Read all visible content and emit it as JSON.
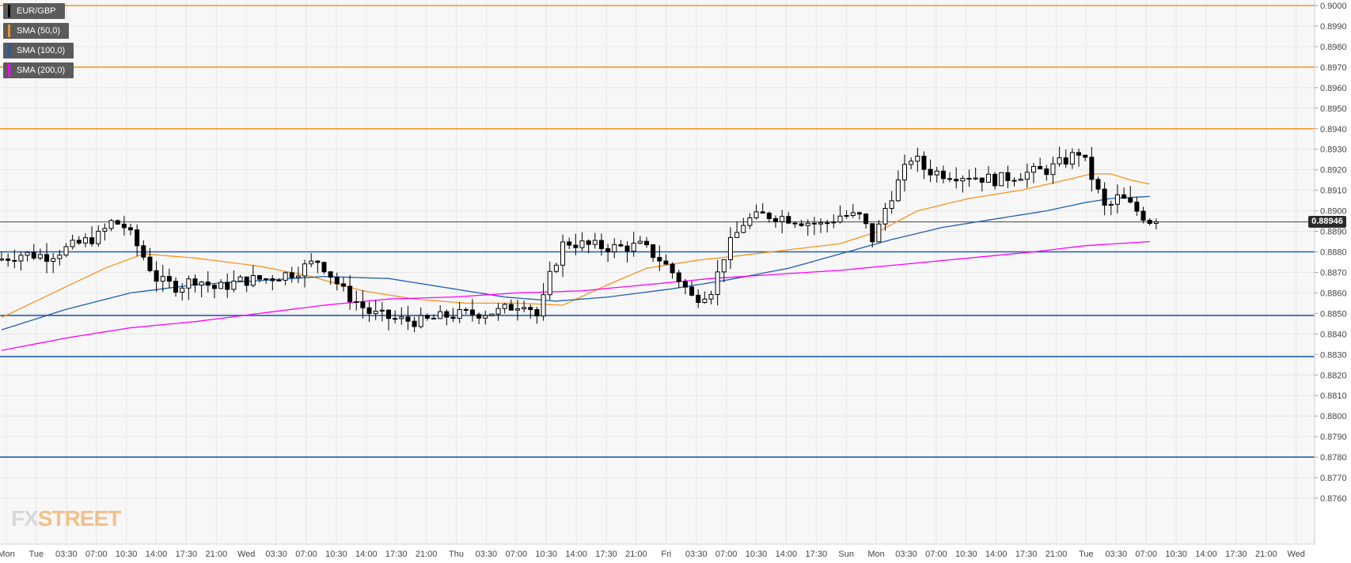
{
  "chart_data": {
    "type": "candlestick",
    "symbol": "EUR/GBP",
    "legend": [
      {
        "label": "EUR/GBP",
        "color": "#000000"
      },
      {
        "label": "SMA (50,0)",
        "color": "#f7931e"
      },
      {
        "label": "SMA (100,0)",
        "color": "#1f5fae"
      },
      {
        "label": "SMA (200,0)",
        "color": "#ff00ff"
      }
    ],
    "y_axis": {
      "min": 0.876,
      "max": 0.9,
      "step": 0.001,
      "ticks": [
        "0.9000",
        "0.8990",
        "0.8980",
        "0.8970",
        "0.8960",
        "0.8950",
        "0.8940",
        "0.8930",
        "0.8920",
        "0.8910",
        "0.8900",
        "0.8890",
        "0.8880",
        "0.8870",
        "0.8860",
        "0.8850",
        "0.8840",
        "0.8830",
        "0.8820",
        "0.8810",
        "0.8800",
        "0.8790",
        "0.8780",
        "0.8770",
        "0.8760"
      ]
    },
    "x_axis": {
      "labels": [
        "Mon",
        "Tue",
        "03:30",
        "07:00",
        "10:30",
        "14:00",
        "17:30",
        "21:00",
        "Wed",
        "03:30",
        "07:00",
        "10:30",
        "14:00",
        "17:30",
        "21:00",
        "Thu",
        "03:30",
        "07:00",
        "10:30",
        "14:00",
        "17:30",
        "21:00",
        "Fri",
        "03:30",
        "07:00",
        "10:30",
        "14:00",
        "17:30",
        "Sun",
        "Mon",
        "03:30",
        "07:00",
        "10:30",
        "14:00",
        "17:30",
        "21:00",
        "Tue",
        "03:30",
        "07:00",
        "10:30",
        "14:00",
        "17:30",
        "21:00",
        "Wed"
      ]
    },
    "last_price": "0.88946",
    "last_price_value": 0.88946,
    "horizontal_levels": [
      {
        "value": 0.9,
        "color": "#f7931e"
      },
      {
        "value": 0.897,
        "color": "#f7931e"
      },
      {
        "value": 0.894,
        "color": "#f7931e"
      },
      {
        "value": 0.888,
        "color": "#1f5fae"
      },
      {
        "value": 0.8849,
        "color": "#1f5fae"
      },
      {
        "value": 0.8829,
        "color": "#1f5fae"
      },
      {
        "value": 0.878,
        "color": "#1f5fae"
      }
    ],
    "price_path": [
      [
        0,
        0.8876
      ],
      [
        4,
        0.8879
      ],
      [
        8,
        0.8878
      ],
      [
        12,
        0.8883
      ],
      [
        16,
        0.8888
      ],
      [
        18,
        0.8895
      ],
      [
        20,
        0.8892
      ],
      [
        22,
        0.8882
      ],
      [
        25,
        0.8866
      ],
      [
        28,
        0.8863
      ],
      [
        31,
        0.8867
      ],
      [
        34,
        0.8862
      ],
      [
        38,
        0.8866
      ],
      [
        42,
        0.8867
      ],
      [
        46,
        0.887
      ],
      [
        50,
        0.8876
      ],
      [
        54,
        0.886
      ],
      [
        58,
        0.885
      ],
      [
        62,
        0.8847
      ],
      [
        66,
        0.8846
      ],
      [
        70,
        0.8849
      ],
      [
        74,
        0.885
      ],
      [
        78,
        0.8851
      ],
      [
        82,
        0.8856
      ],
      [
        84,
        0.8848
      ],
      [
        86,
        0.887
      ],
      [
        88,
        0.8885
      ],
      [
        92,
        0.8883
      ],
      [
        96,
        0.8882
      ],
      [
        100,
        0.8883
      ],
      [
        103,
        0.8876
      ],
      [
        106,
        0.8866
      ],
      [
        108,
        0.8857
      ],
      [
        111,
        0.8862
      ],
      [
        113,
        0.888
      ],
      [
        116,
        0.8895
      ],
      [
        119,
        0.8898
      ],
      [
        122,
        0.8897
      ],
      [
        125,
        0.8895
      ],
      [
        128,
        0.8893
      ],
      [
        131,
        0.8898
      ],
      [
        134,
        0.8897
      ],
      [
        136,
        0.8885
      ],
      [
        138,
        0.8903
      ],
      [
        140,
        0.8915
      ],
      [
        142,
        0.8927
      ],
      [
        144,
        0.892
      ],
      [
        147,
        0.8918
      ],
      [
        151,
        0.8917
      ],
      [
        155,
        0.8915
      ],
      [
        159,
        0.8918
      ],
      [
        163,
        0.892
      ],
      [
        166,
        0.8925
      ],
      [
        168,
        0.8929
      ],
      [
        170,
        0.8915
      ],
      [
        172,
        0.89
      ],
      [
        174,
        0.8907
      ],
      [
        176,
        0.8902
      ],
      [
        178,
        0.8897
      ],
      [
        179,
        0.8895
      ]
    ],
    "sma50_path": [
      [
        0,
        0.8848
      ],
      [
        8,
        0.886
      ],
      [
        16,
        0.8872
      ],
      [
        22,
        0.8879
      ],
      [
        30,
        0.8877
      ],
      [
        40,
        0.8873
      ],
      [
        48,
        0.8868
      ],
      [
        56,
        0.8861
      ],
      [
        64,
        0.8857
      ],
      [
        72,
        0.8855
      ],
      [
        80,
        0.8855
      ],
      [
        87,
        0.8854
      ],
      [
        94,
        0.8864
      ],
      [
        100,
        0.8872
      ],
      [
        108,
        0.8876
      ],
      [
        114,
        0.8878
      ],
      [
        122,
        0.8881
      ],
      [
        130,
        0.8884
      ],
      [
        136,
        0.889
      ],
      [
        142,
        0.89
      ],
      [
        150,
        0.8906
      ],
      [
        158,
        0.891
      ],
      [
        165,
        0.8915
      ],
      [
        169,
        0.8918
      ],
      [
        172,
        0.8918
      ],
      [
        175,
        0.8915
      ],
      [
        178,
        0.8913
      ]
    ],
    "sma100_path": [
      [
        0,
        0.8842
      ],
      [
        10,
        0.8852
      ],
      [
        20,
        0.886
      ],
      [
        30,
        0.8864
      ],
      [
        40,
        0.8866
      ],
      [
        50,
        0.8868
      ],
      [
        60,
        0.8867
      ],
      [
        70,
        0.8862
      ],
      [
        78,
        0.8858
      ],
      [
        86,
        0.8856
      ],
      [
        94,
        0.8858
      ],
      [
        104,
        0.8862
      ],
      [
        112,
        0.8866
      ],
      [
        122,
        0.8872
      ],
      [
        130,
        0.8879
      ],
      [
        138,
        0.8886
      ],
      [
        146,
        0.8892
      ],
      [
        154,
        0.8896
      ],
      [
        162,
        0.89
      ],
      [
        168,
        0.8904
      ],
      [
        172,
        0.8906
      ],
      [
        178,
        0.8907
      ]
    ],
    "sma200_path": [
      [
        0,
        0.8832
      ],
      [
        10,
        0.8838
      ],
      [
        20,
        0.8843
      ],
      [
        30,
        0.8846
      ],
      [
        40,
        0.885
      ],
      [
        50,
        0.8854
      ],
      [
        60,
        0.8857
      ],
      [
        70,
        0.8858
      ],
      [
        80,
        0.886
      ],
      [
        90,
        0.8861
      ],
      [
        100,
        0.8864
      ],
      [
        110,
        0.8867
      ],
      [
        120,
        0.8869
      ],
      [
        130,
        0.8871
      ],
      [
        140,
        0.8874
      ],
      [
        150,
        0.8877
      ],
      [
        160,
        0.888
      ],
      [
        168,
        0.8883
      ],
      [
        178,
        0.8885
      ]
    ]
  },
  "branding": {
    "logo_main": "FX",
    "logo_accent": "STREET"
  }
}
